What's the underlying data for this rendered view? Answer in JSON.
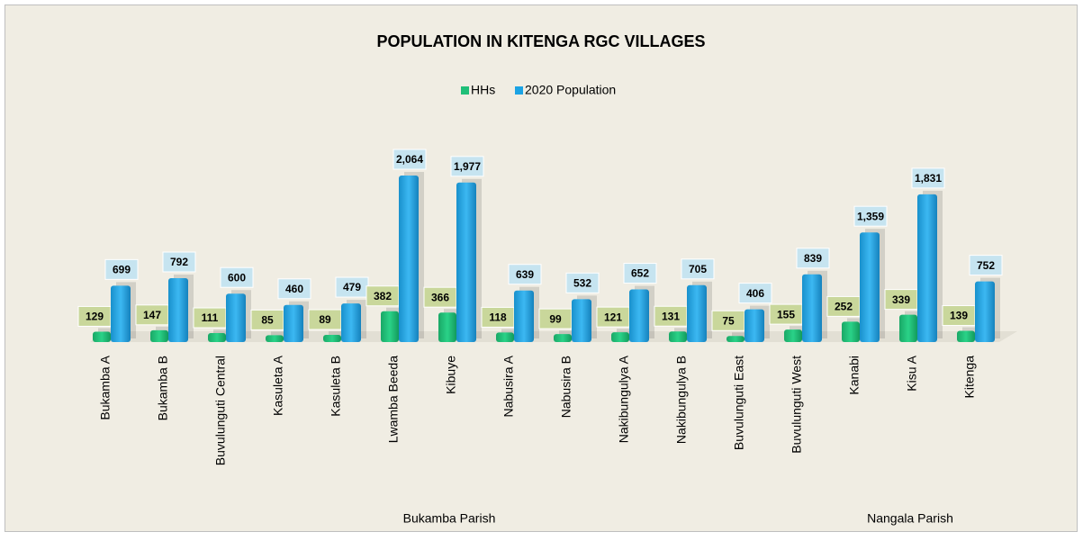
{
  "chart_data": {
    "type": "bar",
    "title": "POPULATION IN KITENGA RGC VILLAGES",
    "categories": [
      "Bukamba A",
      "Bukamba B",
      "Buvulunguti Central",
      "Kasuleta A",
      "Kasuleta B",
      "Lwamba Beeda",
      "Kibuye",
      "Nabusira A",
      "Nabusira B",
      "Nakibungulya A",
      "Nakibungulya B",
      "Buvulunguti East",
      "Buvulunguti West",
      "Kanabi",
      "Kisu A",
      "Kitenga"
    ],
    "groups": [
      {
        "label": "Bukamba Parish",
        "size": 13
      },
      {
        "label": "Nangala Parish",
        "size": 3
      }
    ],
    "series": [
      {
        "name": "HHs",
        "color": "#1fbf78",
        "label_color": "#c9d79b",
        "values": [
          129,
          147,
          111,
          85,
          89,
          382,
          366,
          118,
          99,
          121,
          131,
          75,
          155,
          252,
          339,
          139
        ]
      },
      {
        "name": "2020 Population",
        "color": "#1ba3e4",
        "label_color": "#c6e4f0",
        "values": [
          699,
          792,
          600,
          460,
          479,
          2064,
          1977,
          639,
          532,
          652,
          705,
          406,
          839,
          1359,
          1831,
          752
        ],
        "value_labels": [
          "699",
          "792",
          "600",
          "460",
          "479",
          "2,064",
          "1,977",
          "639",
          "532",
          "652",
          "705",
          "406",
          "839",
          "1,359",
          "1,831",
          "752"
        ]
      }
    ],
    "legend": "top"
  }
}
